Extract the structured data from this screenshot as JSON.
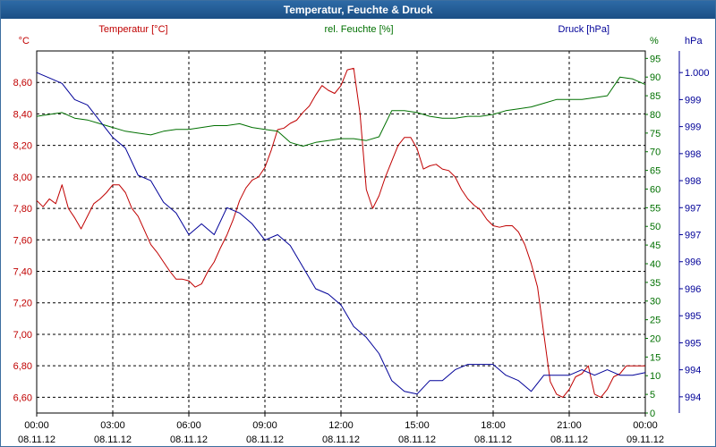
{
  "window": {
    "title": "Temperatur, Feuchte & Druck"
  },
  "colors": {
    "temperature": "#c00000",
    "humidity": "#007000",
    "pressure": "#000098",
    "axis_text": "#000000",
    "grid": "#000000"
  },
  "chart_data": {
    "type": "line",
    "title": "Temperatur, Feuchte & Druck",
    "grid": true,
    "x_ticks": [
      {
        "time": "00:00",
        "date": "08.11.12"
      },
      {
        "time": "03:00",
        "date": "08.11.12"
      },
      {
        "time": "06:00",
        "date": "08.11.12"
      },
      {
        "time": "09:00",
        "date": "08.11.12"
      },
      {
        "time": "12:00",
        "date": "08.11.12"
      },
      {
        "time": "15:00",
        "date": "08.11.12"
      },
      {
        "time": "18:00",
        "date": "08.11.12"
      },
      {
        "time": "21:00",
        "date": "08.11.12"
      },
      {
        "time": "00:00",
        "date": "09.11.12"
      }
    ],
    "xlim": [
      0,
      24
    ],
    "axes": {
      "temperature": {
        "label": "Temperatur [°C]",
        "unit": "°C",
        "ylim": [
          6.5,
          8.8
        ],
        "ticks": [
          "8,60",
          "8,40",
          "8,20",
          "8,00",
          "7,80",
          "7,60",
          "7,40",
          "7,20",
          "7,00",
          "6,80",
          "6,60"
        ],
        "tick_values": [
          8.6,
          8.4,
          8.2,
          8.0,
          7.8,
          7.6,
          7.4,
          7.2,
          7.0,
          6.8,
          6.6
        ]
      },
      "humidity": {
        "label": "rel. Feuchte [%]",
        "unit": "%",
        "ylim": [
          0,
          97
        ],
        "ticks": [
          "95",
          "90",
          "85",
          "80",
          "75",
          "70",
          "65",
          "60",
          "55",
          "50",
          "45",
          "40",
          "35",
          "30",
          "25",
          "20",
          "15",
          "10",
          "5",
          "0"
        ],
        "tick_values": [
          95,
          90,
          85,
          80,
          75,
          70,
          65,
          60,
          55,
          50,
          45,
          40,
          35,
          30,
          25,
          20,
          15,
          10,
          5,
          0
        ]
      },
      "pressure": {
        "label": "Druck [hPa]",
        "unit": "hPa",
        "ylim": [
          993.7,
          1000.4
        ],
        "ticks": [
          "1.000",
          "999",
          "999",
          "998",
          "998",
          "997",
          "997",
          "996",
          "996",
          "995",
          "995",
          "994",
          "994"
        ],
        "tick_values": [
          1000,
          999.5,
          999,
          998.5,
          998,
          997.5,
          997,
          996.5,
          996,
          995.5,
          995,
          994.5,
          994
        ]
      }
    },
    "series": [
      {
        "name": "Temperatur [°C]",
        "axis": "temperature",
        "x": [
          0,
          0.25,
          0.5,
          0.75,
          1,
          1.25,
          1.5,
          1.75,
          2,
          2.25,
          2.5,
          2.75,
          3,
          3.25,
          3.5,
          3.75,
          4,
          4.25,
          4.5,
          4.75,
          5,
          5.25,
          5.5,
          5.75,
          6,
          6.25,
          6.5,
          6.75,
          7,
          7.25,
          7.5,
          7.75,
          8,
          8.25,
          8.5,
          8.75,
          9,
          9.25,
          9.5,
          9.75,
          10,
          10.25,
          10.5,
          10.75,
          11,
          11.25,
          11.5,
          11.75,
          12,
          12.25,
          12.5,
          12.75,
          13,
          13.25,
          13.5,
          13.75,
          14,
          14.25,
          14.5,
          14.75,
          15,
          15.25,
          15.5,
          15.75,
          16,
          16.25,
          16.5,
          16.75,
          17,
          17.25,
          17.5,
          17.75,
          18,
          18.25,
          18.5,
          18.75,
          19,
          19.25,
          19.5,
          19.75,
          20,
          20.25,
          20.5,
          20.75,
          21,
          21.25,
          21.5,
          21.75,
          22,
          22.25,
          22.5,
          22.75,
          23,
          23.25,
          23.5,
          23.75,
          24
        ],
        "values": [
          7.85,
          7.81,
          7.86,
          7.83,
          7.95,
          7.8,
          7.74,
          7.67,
          7.75,
          7.83,
          7.86,
          7.9,
          7.95,
          7.95,
          7.9,
          7.8,
          7.75,
          7.66,
          7.57,
          7.52,
          7.46,
          7.4,
          7.35,
          7.35,
          7.34,
          7.3,
          7.32,
          7.4,
          7.46,
          7.55,
          7.63,
          7.73,
          7.85,
          7.93,
          7.98,
          8.0,
          8.06,
          8.17,
          8.3,
          8.31,
          8.34,
          8.36,
          8.41,
          8.45,
          8.52,
          8.58,
          8.55,
          8.53,
          8.58,
          8.68,
          8.69,
          8.4,
          7.92,
          7.8,
          7.88,
          8.0,
          8.1,
          8.2,
          8.25,
          8.25,
          8.18,
          8.05,
          8.07,
          8.08,
          8.05,
          8.04,
          8.0,
          7.92,
          7.86,
          7.82,
          7.79,
          7.73,
          7.69,
          7.68,
          7.69,
          7.69,
          7.65,
          7.57,
          7.45,
          7.3,
          7.0,
          6.7,
          6.62,
          6.6,
          6.65,
          6.73,
          6.75,
          6.8,
          6.62,
          6.6,
          6.65,
          6.73,
          6.75,
          6.8,
          6.8,
          6.8,
          6.8
        ]
      },
      {
        "name": "rel. Feuchte [%]",
        "axis": "humidity",
        "x": [
          0,
          0.5,
          1,
          1.5,
          2,
          2.5,
          3,
          3.5,
          4,
          4.5,
          5,
          5.5,
          6,
          6.5,
          7,
          7.5,
          8,
          8.5,
          9,
          9.5,
          10,
          10.5,
          11,
          11.5,
          12,
          12.5,
          13,
          13.5,
          14,
          14.5,
          15,
          15.5,
          16,
          16.5,
          17,
          17.5,
          18,
          18.5,
          19,
          19.5,
          20,
          20.5,
          21,
          21.5,
          22,
          22.5,
          23,
          23.5,
          24
        ],
        "values": [
          79.5,
          80,
          80.5,
          79,
          78.5,
          77.5,
          76.5,
          75.5,
          75,
          74.5,
          75.5,
          76,
          76,
          76.5,
          77,
          77,
          77.5,
          76.5,
          76,
          75.5,
          72.5,
          71.5,
          72.5,
          73,
          73.5,
          73.5,
          73,
          74,
          81,
          81,
          80.5,
          79.5,
          79,
          79,
          79.5,
          79.5,
          80,
          81,
          81.5,
          82,
          83,
          84,
          84,
          84,
          84.5,
          85,
          90,
          89.5,
          88
        ]
      },
      {
        "name": "Druck [hPa]",
        "axis": "pressure",
        "x": [
          0,
          0.5,
          1,
          1.5,
          2,
          2.5,
          3,
          3.5,
          4,
          4.5,
          5,
          5.5,
          6,
          6.5,
          7,
          7.5,
          8,
          8.5,
          9,
          9.5,
          10,
          10.5,
          11,
          11.5,
          12,
          12.5,
          13,
          13.5,
          14,
          14.5,
          15,
          15.5,
          16,
          16.5,
          17,
          17.5,
          18,
          18.5,
          19,
          19.5,
          20,
          20.5,
          21,
          21.5,
          22,
          22.5,
          23,
          23.5,
          24
        ],
        "values": [
          1000.0,
          999.9,
          999.8,
          999.5,
          999.4,
          999.1,
          998.8,
          998.6,
          998.1,
          998.0,
          997.6,
          997.4,
          997.0,
          997.2,
          997.0,
          997.5,
          997.4,
          997.2,
          996.9,
          997.0,
          996.8,
          996.4,
          996.0,
          995.9,
          995.7,
          995.3,
          995.1,
          994.8,
          994.3,
          994.1,
          994.05,
          994.3,
          994.3,
          994.5,
          994.6,
          994.6,
          994.6,
          994.4,
          994.3,
          994.1,
          994.4,
          994.4,
          994.4,
          994.5,
          994.4,
          994.5,
          994.4,
          994.4,
          994.45
        ]
      }
    ]
  }
}
